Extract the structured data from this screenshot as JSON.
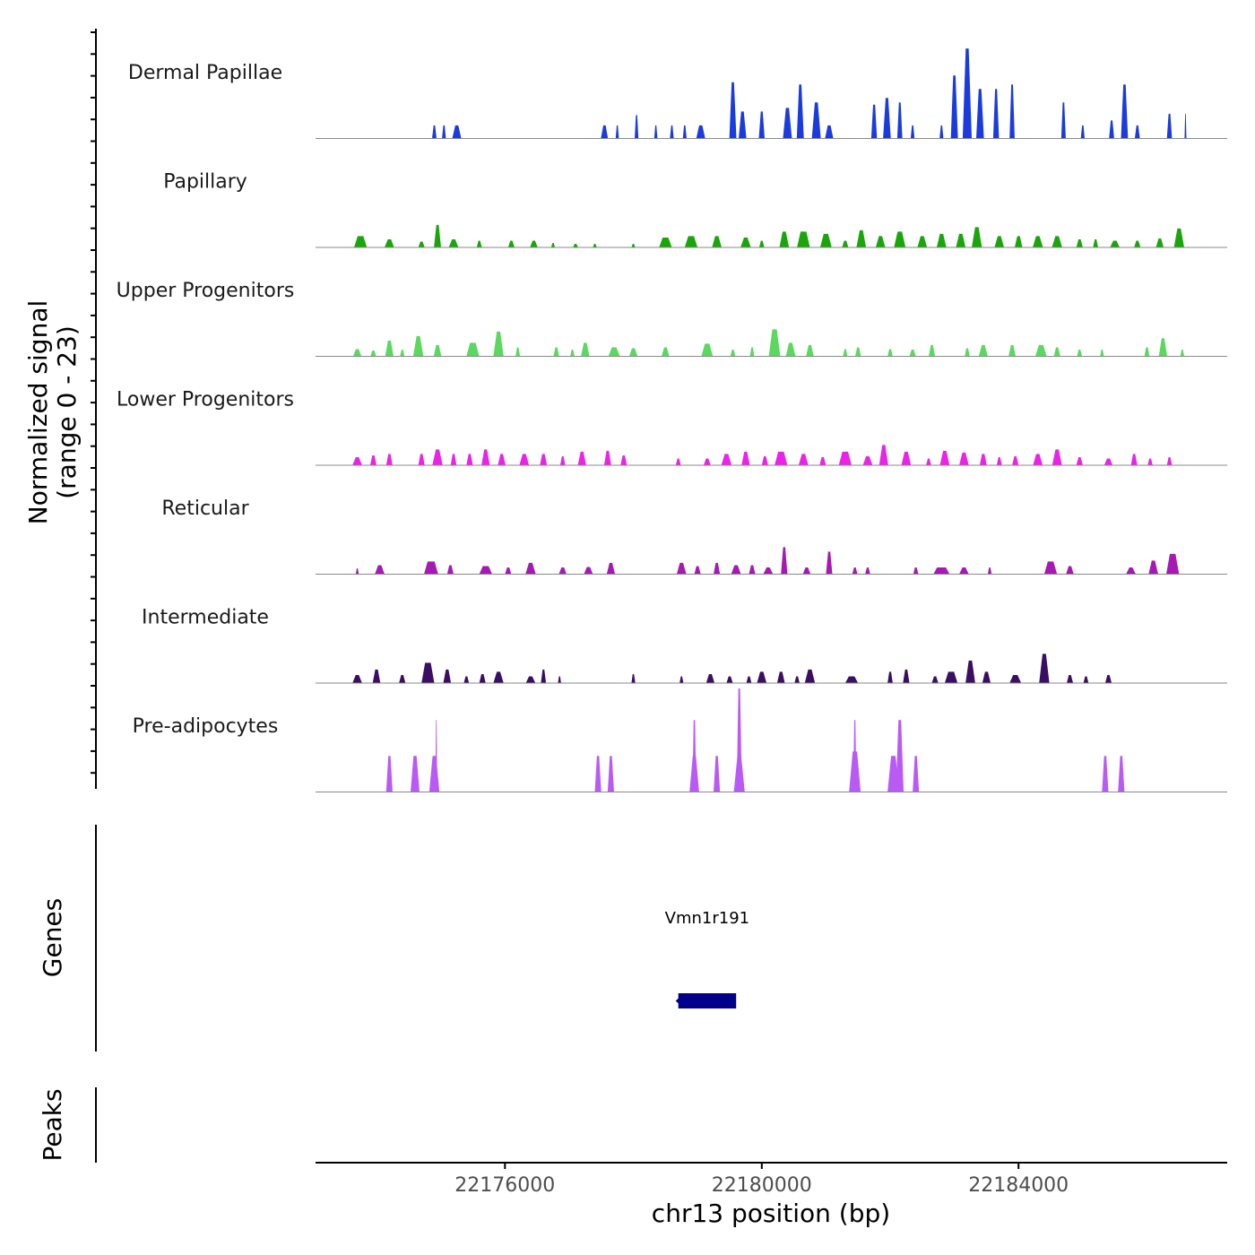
{
  "chart_data": {
    "type": "area",
    "title": "",
    "ylabel_line1": "Normalized signal",
    "ylabel_line2": "(range 0 - 23)",
    "y_range": [
      0,
      23
    ],
    "xlabel": "chr13 position (bp)",
    "x_range": [
      22173050,
      22187250
    ],
    "x_ticks": [
      22176000,
      22180000,
      22184000
    ],
    "x_tick_labels": [
      "22176000",
      "22180000",
      "22184000"
    ],
    "series": [
      {
        "name": "Dermal Papillae",
        "color": "#1A3BE0",
        "peaks": [
          [
            22174900,
            70,
            2.9
          ],
          [
            22175050,
            60,
            2.9
          ],
          [
            22175250,
            140,
            2.9
          ],
          [
            22177550,
            110,
            2.9
          ],
          [
            22177750,
            50,
            2.9
          ],
          [
            22178050,
            60,
            5.2
          ],
          [
            22178350,
            50,
            2.9
          ],
          [
            22178600,
            60,
            2.9
          ],
          [
            22178800,
            60,
            2.9
          ],
          [
            22179050,
            140,
            2.9
          ],
          [
            22179550,
            110,
            12.5
          ],
          [
            22179700,
            120,
            6.0
          ],
          [
            22180000,
            90,
            6.0
          ],
          [
            22180400,
            140,
            6.8
          ],
          [
            22180600,
            110,
            12.0
          ],
          [
            22180850,
            140,
            8.0
          ],
          [
            22181050,
            130,
            2.9
          ],
          [
            22181750,
            90,
            7.5
          ],
          [
            22181950,
            120,
            9.0
          ],
          [
            22182150,
            80,
            8.0
          ],
          [
            22182350,
            60,
            2.9
          ],
          [
            22182800,
            60,
            2.9
          ],
          [
            22183000,
            110,
            14.0
          ],
          [
            22183200,
            140,
            20.0
          ],
          [
            22183400,
            120,
            11.0
          ],
          [
            22183650,
            90,
            11.0
          ],
          [
            22183900,
            80,
            12.0
          ],
          [
            22184700,
            70,
            8.0
          ],
          [
            22185000,
            60,
            2.9
          ],
          [
            22185450,
            80,
            4.0
          ],
          [
            22185650,
            110,
            12.0
          ],
          [
            22185850,
            80,
            2.9
          ],
          [
            22186350,
            80,
            5.5
          ],
          [
            22186600,
            30,
            5.5
          ]
        ]
      },
      {
        "name": "Papillary",
        "color": "#1AA60A",
        "peaks": [
          [
            22173750,
            200,
            2.5
          ],
          [
            22174200,
            150,
            1.8
          ],
          [
            22174700,
            100,
            1.3
          ],
          [
            22174950,
            110,
            5.0
          ],
          [
            22175200,
            150,
            1.8
          ],
          [
            22175600,
            80,
            1.5
          ],
          [
            22176100,
            100,
            1.5
          ],
          [
            22176450,
            120,
            1.5
          ],
          [
            22176750,
            60,
            1.0
          ],
          [
            22177100,
            80,
            0.8
          ],
          [
            22177400,
            60,
            0.8
          ],
          [
            22178000,
            60,
            0.8
          ],
          [
            22178500,
            200,
            2.2
          ],
          [
            22178900,
            200,
            2.5
          ],
          [
            22179300,
            150,
            2.5
          ],
          [
            22179750,
            160,
            2.2
          ],
          [
            22180000,
            80,
            1.5
          ],
          [
            22180350,
            150,
            3.5
          ],
          [
            22180650,
            200,
            3.5
          ],
          [
            22181000,
            180,
            3.0
          ],
          [
            22181300,
            100,
            1.5
          ],
          [
            22181550,
            150,
            3.8
          ],
          [
            22181850,
            150,
            2.5
          ],
          [
            22182150,
            180,
            3.5
          ],
          [
            22182500,
            150,
            2.5
          ],
          [
            22182800,
            150,
            3.0
          ],
          [
            22183100,
            150,
            3.0
          ],
          [
            22183350,
            160,
            4.5
          ],
          [
            22183700,
            150,
            2.5
          ],
          [
            22184000,
            120,
            2.5
          ],
          [
            22184300,
            160,
            2.5
          ],
          [
            22184600,
            160,
            2.5
          ],
          [
            22184950,
            100,
            1.8
          ],
          [
            22185200,
            80,
            1.8
          ],
          [
            22185500,
            150,
            1.5
          ],
          [
            22185850,
            100,
            1.5
          ],
          [
            22186200,
            120,
            2.0
          ],
          [
            22186500,
            160,
            4.2
          ]
        ]
      },
      {
        "name": "Upper Progenitors",
        "color": "#5AD95E",
        "peaks": [
          [
            22173700,
            130,
            1.6
          ],
          [
            22173950,
            90,
            1.3
          ],
          [
            22174200,
            130,
            3.5
          ],
          [
            22174400,
            70,
            1.5
          ],
          [
            22174650,
            160,
            4.5
          ],
          [
            22174950,
            120,
            2.5
          ],
          [
            22175500,
            200,
            3.0
          ],
          [
            22175900,
            160,
            5.5
          ],
          [
            22176200,
            70,
            2.0
          ],
          [
            22176800,
            90,
            2.0
          ],
          [
            22177050,
            70,
            1.5
          ],
          [
            22177250,
            130,
            3.0
          ],
          [
            22177700,
            180,
            2.0
          ],
          [
            22178000,
            130,
            1.8
          ],
          [
            22178500,
            120,
            2.0
          ],
          [
            22179150,
            180,
            2.8
          ],
          [
            22179550,
            80,
            1.5
          ],
          [
            22179850,
            70,
            2.0
          ],
          [
            22180200,
            180,
            6.0
          ],
          [
            22180450,
            150,
            3.0
          ],
          [
            22180750,
            120,
            2.5
          ],
          [
            22181300,
            70,
            1.6
          ],
          [
            22181500,
            90,
            2.0
          ],
          [
            22182000,
            80,
            1.6
          ],
          [
            22182350,
            100,
            1.5
          ],
          [
            22182650,
            100,
            2.5
          ],
          [
            22183200,
            80,
            1.8
          ],
          [
            22183450,
            140,
            2.5
          ],
          [
            22183900,
            110,
            2.5
          ],
          [
            22184350,
            180,
            2.5
          ],
          [
            22184600,
            100,
            2.0
          ],
          [
            22184950,
            80,
            1.5
          ],
          [
            22185300,
            60,
            1.5
          ],
          [
            22186000,
            80,
            2.0
          ],
          [
            22186250,
            130,
            4.0
          ],
          [
            22186550,
            60,
            1.5
          ]
        ]
      },
      {
        "name": "Lower Progenitors",
        "color": "#EB22E8",
        "peaks": [
          [
            22173700,
            150,
            1.8
          ],
          [
            22173950,
            100,
            2.2
          ],
          [
            22174200,
            100,
            2.5
          ],
          [
            22174700,
            100,
            2.5
          ],
          [
            22174950,
            160,
            3.5
          ],
          [
            22175200,
            90,
            2.5
          ],
          [
            22175450,
            100,
            2.5
          ],
          [
            22175700,
            130,
            3.5
          ],
          [
            22175950,
            120,
            2.5
          ],
          [
            22176300,
            150,
            2.5
          ],
          [
            22176600,
            110,
            2.5
          ],
          [
            22176900,
            80,
            2.0
          ],
          [
            22177200,
            130,
            3.0
          ],
          [
            22177600,
            110,
            3.2
          ],
          [
            22177850,
            100,
            2.2
          ],
          [
            22178700,
            80,
            1.5
          ],
          [
            22179150,
            110,
            1.5
          ],
          [
            22179450,
            160,
            2.5
          ],
          [
            22179750,
            130,
            3.0
          ],
          [
            22180050,
            100,
            2.0
          ],
          [
            22180300,
            200,
            3.0
          ],
          [
            22180650,
            150,
            2.5
          ],
          [
            22180950,
            100,
            1.8
          ],
          [
            22181300,
            200,
            3.0
          ],
          [
            22181650,
            150,
            2.0
          ],
          [
            22181900,
            140,
            4.5
          ],
          [
            22182250,
            150,
            3.0
          ],
          [
            22182600,
            80,
            1.5
          ],
          [
            22182850,
            150,
            3.2
          ],
          [
            22183150,
            150,
            2.8
          ],
          [
            22183450,
            110,
            2.5
          ],
          [
            22183700,
            80,
            1.8
          ],
          [
            22183950,
            100,
            2.0
          ],
          [
            22184300,
            150,
            2.5
          ],
          [
            22184600,
            150,
            3.5
          ],
          [
            22184950,
            100,
            1.8
          ],
          [
            22185400,
            130,
            1.5
          ],
          [
            22185800,
            100,
            2.5
          ],
          [
            22186050,
            80,
            1.5
          ],
          [
            22186350,
            80,
            1.8
          ]
        ]
      },
      {
        "name": "Reticular",
        "color": "#A51AB2",
        "peaks": [
          [
            22173700,
            50,
            1.3
          ],
          [
            22174050,
            150,
            2.0
          ],
          [
            22174850,
            220,
            2.8
          ],
          [
            22175150,
            100,
            2.0
          ],
          [
            22175700,
            200,
            1.8
          ],
          [
            22176050,
            100,
            1.5
          ],
          [
            22176400,
            160,
            2.5
          ],
          [
            22176900,
            120,
            1.5
          ],
          [
            22177300,
            140,
            1.6
          ],
          [
            22177650,
            130,
            2.5
          ],
          [
            22178750,
            150,
            2.5
          ],
          [
            22179000,
            100,
            1.8
          ],
          [
            22179300,
            100,
            2.5
          ],
          [
            22179600,
            150,
            2.0
          ],
          [
            22179850,
            100,
            2.0
          ],
          [
            22180100,
            150,
            1.5
          ],
          [
            22180350,
            100,
            6.0
          ],
          [
            22180700,
            120,
            1.5
          ],
          [
            22181050,
            100,
            5.0
          ],
          [
            22181450,
            80,
            1.5
          ],
          [
            22181650,
            80,
            1.5
          ],
          [
            22182400,
            80,
            1.5
          ],
          [
            22182800,
            250,
            1.5
          ],
          [
            22183150,
            150,
            1.5
          ],
          [
            22183550,
            60,
            1.5
          ],
          [
            22184500,
            200,
            2.8
          ],
          [
            22184800,
            120,
            1.8
          ],
          [
            22185750,
            150,
            1.5
          ],
          [
            22186100,
            150,
            3.0
          ],
          [
            22186400,
            200,
            4.5
          ]
        ]
      },
      {
        "name": "Intermediate",
        "color": "#3A0F63",
        "peaks": [
          [
            22173700,
            150,
            1.8
          ],
          [
            22174000,
            120,
            3.0
          ],
          [
            22174400,
            100,
            1.8
          ],
          [
            22174800,
            200,
            4.5
          ],
          [
            22175100,
            120,
            3.0
          ],
          [
            22175400,
            80,
            1.5
          ],
          [
            22175650,
            100,
            2.0
          ],
          [
            22175900,
            160,
            2.5
          ],
          [
            22176400,
            150,
            1.5
          ],
          [
            22176600,
            80,
            3.0
          ],
          [
            22176850,
            50,
            1.5
          ],
          [
            22178000,
            60,
            2.0
          ],
          [
            22178750,
            60,
            1.5
          ],
          [
            22179200,
            130,
            2.0
          ],
          [
            22179500,
            100,
            1.5
          ],
          [
            22179800,
            80,
            1.5
          ],
          [
            22180000,
            150,
            2.5
          ],
          [
            22180300,
            120,
            2.5
          ],
          [
            22180550,
            80,
            1.5
          ],
          [
            22180750,
            160,
            3.0
          ],
          [
            22181400,
            200,
            1.5
          ],
          [
            22182000,
            80,
            2.5
          ],
          [
            22182250,
            100,
            3.0
          ],
          [
            22182700,
            100,
            1.5
          ],
          [
            22182950,
            200,
            2.5
          ],
          [
            22183250,
            150,
            5.0
          ],
          [
            22183500,
            130,
            2.5
          ],
          [
            22183950,
            180,
            1.8
          ],
          [
            22184400,
            160,
            6.5
          ],
          [
            22184800,
            100,
            1.8
          ],
          [
            22185050,
            80,
            1.5
          ],
          [
            22185400,
            100,
            1.8
          ]
        ]
      },
      {
        "name": "Pre-adipocytes",
        "color": "#BA5AF5",
        "peaks": [
          [
            22174200,
            100,
            8.0
          ],
          [
            22174600,
            140,
            8.0
          ],
          [
            22174900,
            160,
            8.0
          ],
          [
            22174930,
            30,
            16.0
          ],
          [
            22177450,
            100,
            8.0
          ],
          [
            22177650,
            100,
            8.0
          ],
          [
            22178950,
            150,
            8.0
          ],
          [
            22178950,
            60,
            16.0
          ],
          [
            22179300,
            100,
            8.0
          ],
          [
            22179650,
            170,
            8.0
          ],
          [
            22179650,
            80,
            24.0
          ],
          [
            22181450,
            180,
            9.0
          ],
          [
            22181450,
            50,
            16.0
          ],
          [
            22182050,
            180,
            8.0
          ],
          [
            22182150,
            120,
            16.0
          ],
          [
            22182400,
            100,
            8.0
          ],
          [
            22185350,
            100,
            8.0
          ],
          [
            22185600,
            100,
            8.0
          ]
        ]
      }
    ],
    "genes_label": "Genes",
    "genes": [
      {
        "name": "Vmn1r191",
        "start": 22178700,
        "end": 22179600,
        "strand": "-",
        "color": "#00008B"
      }
    ],
    "peaks_label": "Peaks"
  }
}
